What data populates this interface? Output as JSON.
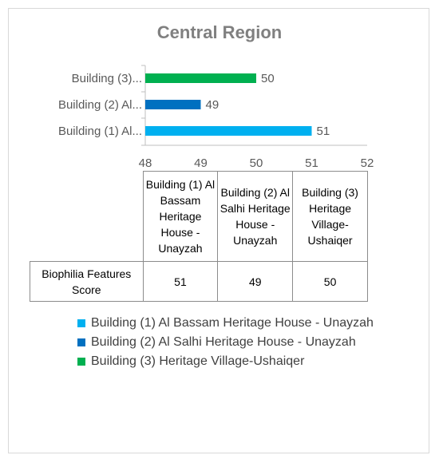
{
  "chart_data": {
    "type": "bar",
    "orientation": "horizontal",
    "title": "Central Region",
    "categories": [
      "Building (1) Al...",
      "Building (2) Al...",
      "Building (3)..."
    ],
    "series": [
      {
        "name": "Building (1) Al Bassam Heritage House - Unayzah",
        "color": "#00b0f0",
        "value": 51,
        "label": "51"
      },
      {
        "name": "Building (2) Al Salhi Heritage House - Unayzah",
        "color": "#0070c0",
        "value": 49,
        "label": "49"
      },
      {
        "name": "Building (3) Heritage Village-Ushaiqer",
        "color": "#00b050",
        "value": 50,
        "label": "50"
      }
    ],
    "xlim": [
      48,
      52
    ],
    "xticks": [
      "48",
      "49",
      "50",
      "51",
      "52"
    ],
    "grid": false,
    "legend": "bottom"
  },
  "data_table": {
    "columns": [
      "Building (1) Al Bassam Heritage House - Unayzah",
      "Building (2) Al Salhi Heritage House - Unayzah",
      "Building (3) Heritage Village-Ushaiqer"
    ],
    "row_label": "Biophilia Features Score",
    "values": [
      "51",
      "49",
      "50"
    ]
  },
  "legend": [
    {
      "label": "Building (1) Al Bassam Heritage House - Unayzah",
      "color": "#00b0f0"
    },
    {
      "label": "Building (2) Al Salhi Heritage House - Unayzah",
      "color": "#0070c0"
    },
    {
      "label": "Building (3) Heritage Village-Ushaiqer",
      "color": "#00b050"
    }
  ]
}
